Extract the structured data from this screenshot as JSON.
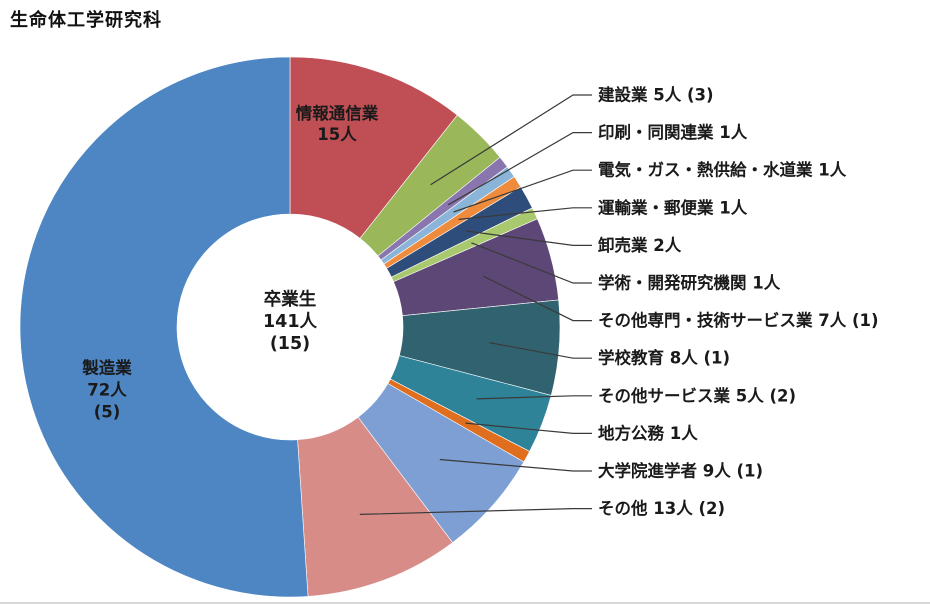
{
  "title": "生命体工学研究科",
  "chart_data": {
    "type": "pie",
    "subtype": "donut",
    "title": "生命体工学研究科",
    "start_angle_deg": 0,
    "direction": "clockwise",
    "total": 141,
    "center_label": {
      "heading": "卒業生",
      "value": "141人",
      "paren": "(15)"
    },
    "legend_position": "right-callouts",
    "text_color": "#1a1a1a",
    "leader_line_color": "#3a3a3a",
    "segments": [
      {
        "name": "情報通信業",
        "value": 15,
        "display": "15人",
        "color": "#c04f55",
        "label_placement": "inside"
      },
      {
        "name": "建設業",
        "value": 5,
        "display": "5人 (3)",
        "color": "#9ab859",
        "label_placement": "callout"
      },
      {
        "name": "印刷・同関連業",
        "value": 1,
        "display": "1人",
        "color": "#8976ae",
        "label_placement": "callout"
      },
      {
        "name": "電気・ガス・熱供給・水道業",
        "value": 1,
        "display": "1人",
        "color": "#8ab4d8",
        "label_placement": "callout"
      },
      {
        "name": "運輸業・郵便業",
        "value": 1,
        "display": "1人",
        "color": "#ef8b3c",
        "label_placement": "callout"
      },
      {
        "name": "卸売業",
        "value": 2,
        "display": "2人",
        "color": "#2e4d7b",
        "label_placement": "callout"
      },
      {
        "name": "学術・開発研究機関",
        "value": 1,
        "display": "1人",
        "color": "#a8c96d",
        "label_placement": "callout"
      },
      {
        "name": "その他専門・技術サービス業",
        "value": 7,
        "display": "7人 (1)",
        "color": "#5d4776",
        "label_placement": "callout"
      },
      {
        "name": "学校教育",
        "value": 8,
        "display": "8人 (1)",
        "color": "#30636f",
        "label_placement": "callout"
      },
      {
        "name": "その他サービス業",
        "value": 5,
        "display": "5人 (2)",
        "color": "#2f8399",
        "label_placement": "callout"
      },
      {
        "name": "地方公務",
        "value": 1,
        "display": "1人",
        "color": "#e06e1f",
        "label_placement": "callout"
      },
      {
        "name": "大学院進学者",
        "value": 9,
        "display": "9人 (1)",
        "color": "#7d9fd3",
        "label_placement": "callout"
      },
      {
        "name": "その他",
        "value": 13,
        "display": "13人 (2)",
        "color": "#d88c88",
        "label_placement": "callout"
      },
      {
        "name": "製造業",
        "value": 72,
        "display": "72人 (5)",
        "color": "#4e86c4",
        "label_placement": "inside"
      }
    ]
  }
}
